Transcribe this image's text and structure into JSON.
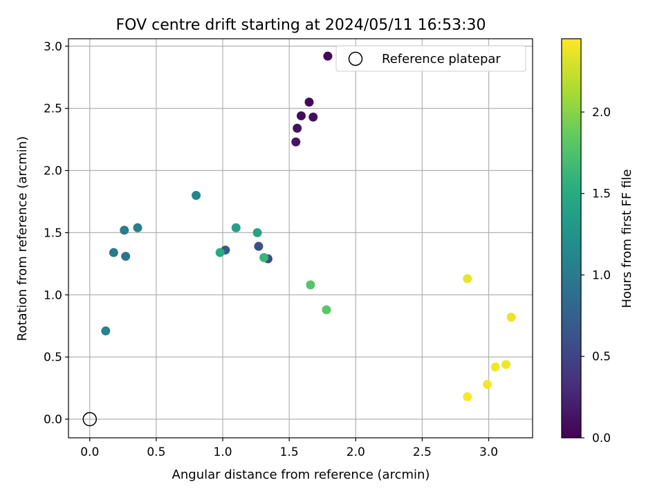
{
  "chart_data": {
    "type": "scatter",
    "title": "FOV centre drift starting at 2024/05/11 16:53:30",
    "xlabel": "Angular distance from reference (arcmin)",
    "ylabel": "Rotation from reference (arcmin)",
    "xlim": [
      -0.16,
      3.33
    ],
    "ylim": [
      -0.15,
      3.06
    ],
    "x_ticks": [
      0.0,
      0.5,
      1.0,
      1.5,
      2.0,
      2.5,
      3.0
    ],
    "x_tick_labels": [
      "0.0",
      "0.5",
      "1.0",
      "1.5",
      "2.0",
      "2.5",
      "3.0"
    ],
    "y_ticks": [
      0.0,
      0.5,
      1.0,
      1.5,
      2.0,
      2.5,
      3.0
    ],
    "y_tick_labels": [
      "0.0",
      "0.5",
      "1.0",
      "1.5",
      "2.0",
      "2.5",
      "3.0"
    ],
    "grid": true,
    "legend": {
      "location": "top-right",
      "entries": [
        "Reference platepar"
      ]
    },
    "reference_point": {
      "x": 0.0,
      "y": 0.0,
      "label": "Reference platepar"
    },
    "colorbar": {
      "label": "Hours from first FF file",
      "colormap": "viridis",
      "range": [
        0.0,
        2.45
      ],
      "ticks": [
        0.0,
        0.5,
        1.0,
        1.5,
        2.0
      ],
      "tick_labels": [
        "0.0",
        "0.5",
        "1.0",
        "1.5",
        "2.0"
      ]
    },
    "points": [
      {
        "x": 1.79,
        "y": 2.92,
        "hours": 0.02
      },
      {
        "x": 1.65,
        "y": 2.55,
        "hours": 0.06
      },
      {
        "x": 1.59,
        "y": 2.44,
        "hours": 0.08
      },
      {
        "x": 1.68,
        "y": 2.43,
        "hours": 0.1
      },
      {
        "x": 1.56,
        "y": 2.34,
        "hours": 0.12
      },
      {
        "x": 1.55,
        "y": 2.23,
        "hours": 0.14
      },
      {
        "x": 1.34,
        "y": 1.29,
        "hours": 0.55
      },
      {
        "x": 1.27,
        "y": 1.39,
        "hours": 0.6
      },
      {
        "x": 1.02,
        "y": 1.36,
        "hours": 0.68
      },
      {
        "x": 0.27,
        "y": 1.31,
        "hours": 0.95
      },
      {
        "x": 0.18,
        "y": 1.34,
        "hours": 0.98
      },
      {
        "x": 0.26,
        "y": 1.52,
        "hours": 1.02
      },
      {
        "x": 0.36,
        "y": 1.54,
        "hours": 1.05
      },
      {
        "x": 0.12,
        "y": 0.71,
        "hours": 1.08
      },
      {
        "x": 0.8,
        "y": 1.8,
        "hours": 1.12
      },
      {
        "x": 1.1,
        "y": 1.54,
        "hours": 1.38
      },
      {
        "x": 1.26,
        "y": 1.5,
        "hours": 1.42
      },
      {
        "x": 0.98,
        "y": 1.34,
        "hours": 1.48
      },
      {
        "x": 1.31,
        "y": 1.3,
        "hours": 1.62
      },
      {
        "x": 1.66,
        "y": 1.08,
        "hours": 1.78
      },
      {
        "x": 1.78,
        "y": 0.88,
        "hours": 1.82
      },
      {
        "x": 2.84,
        "y": 1.13,
        "hours": 2.36
      },
      {
        "x": 3.17,
        "y": 0.82,
        "hours": 2.38
      },
      {
        "x": 3.13,
        "y": 0.44,
        "hours": 2.4
      },
      {
        "x": 3.05,
        "y": 0.42,
        "hours": 2.41
      },
      {
        "x": 2.99,
        "y": 0.28,
        "hours": 2.42
      },
      {
        "x": 2.84,
        "y": 0.18,
        "hours": 2.44
      }
    ]
  }
}
